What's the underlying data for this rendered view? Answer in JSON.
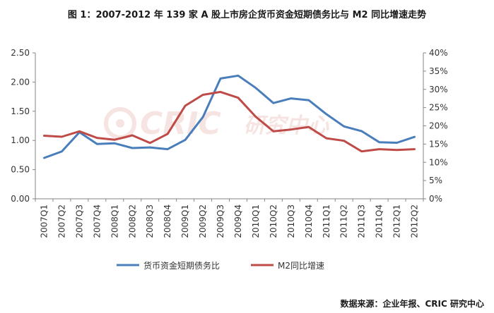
{
  "chart_data": {
    "type": "line",
    "title": "图 1：2007-2012 年 139 家 A 股上市房企货币资金短期债务比与 M2 同比增速走势",
    "categories": [
      "2007Q1",
      "2007Q2",
      "2007Q3",
      "2007Q4",
      "2008Q1",
      "2008Q2",
      "2008Q3",
      "2008Q4",
      "2009Q1",
      "2009Q2",
      "2009Q3",
      "2009Q4",
      "2010Q1",
      "2010Q2",
      "2010Q3",
      "2010Q4",
      "2011Q1",
      "2011Q2",
      "2011Q3",
      "2011Q4",
      "2012Q1",
      "2012Q2"
    ],
    "series": [
      {
        "name": "货币资金短期债务比",
        "axis": "left",
        "color": "#4a7ebb",
        "values": [
          0.7,
          0.81,
          1.14,
          0.94,
          0.95,
          0.87,
          0.88,
          0.85,
          1.01,
          1.4,
          2.06,
          2.11,
          1.9,
          1.64,
          1.72,
          1.69,
          1.45,
          1.24,
          1.16,
          0.97,
          0.96,
          1.06
        ]
      },
      {
        "name": "M2同比增速",
        "axis": "right",
        "color": "#be4b48",
        "values": [
          17.3,
          17.0,
          18.5,
          16.7,
          16.2,
          17.4,
          15.3,
          17.8,
          25.5,
          28.5,
          29.3,
          27.7,
          22.5,
          18.5,
          19.0,
          19.7,
          16.6,
          15.9,
          13.0,
          13.6,
          13.4,
          13.6
        ]
      }
    ],
    "left_axis": {
      "min": 0,
      "max": 2.5,
      "step": 0.5,
      "tick_labels": [
        "0.00",
        "0.50",
        "1.00",
        "1.50",
        "2.00",
        "2.50"
      ]
    },
    "right_axis": {
      "min": 0,
      "max": 40,
      "step": 5,
      "tick_labels": [
        "0%",
        "5%",
        "10%",
        "15%",
        "20%",
        "25%",
        "30%",
        "35%",
        "40%"
      ]
    },
    "grid": false,
    "legend_position": "bottom"
  },
  "watermark": {
    "brand": "CRIC",
    "cn": "研究中心"
  },
  "source": "数据来源：企业年报、CRIC 研究中心"
}
